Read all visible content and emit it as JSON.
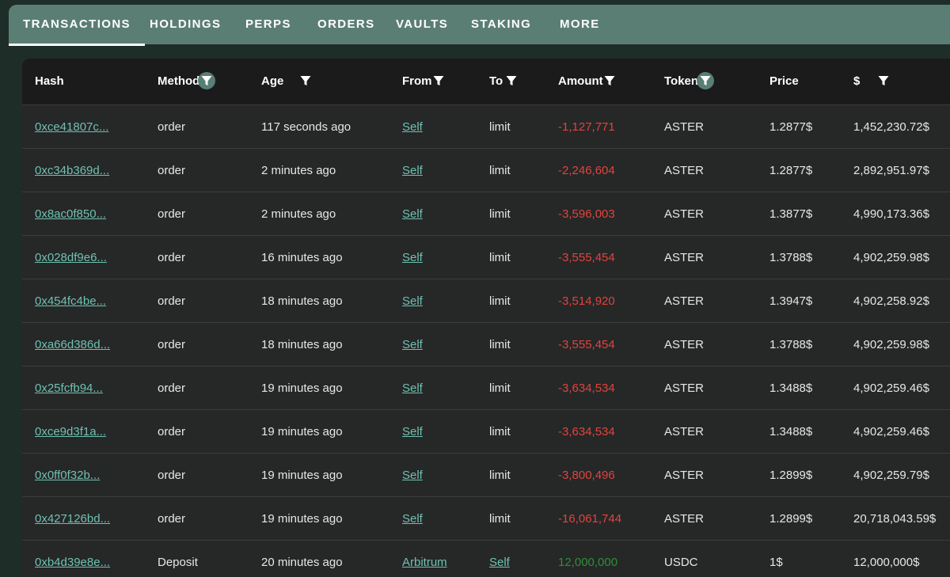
{
  "tabs": [
    "TRANSACTIONS",
    "HOLDINGS",
    "PERPS",
    "ORDERS",
    "VAULTS",
    "STAKING",
    "MORE"
  ],
  "active_tab": "TRANSACTIONS",
  "columns": [
    "Hash",
    "Method",
    "Age",
    "From",
    "To",
    "Amount",
    "Token",
    "Price",
    "$"
  ],
  "filter_icon": "filter-funnel-icon",
  "colors": {
    "link": "#6fc1b2",
    "negative": "#e0443e",
    "positive": "#2f8f3a",
    "tabbar": "#5b7e74",
    "filter_active": "#587e76"
  },
  "rows": [
    {
      "hash": "0xce41807c...",
      "method": "order",
      "age": "117 seconds ago",
      "from": "Self",
      "to": "limit",
      "amount": "-1,127,771",
      "token": "ASTER",
      "price": "1.2877$",
      "usd": "1,452,230.72$"
    },
    {
      "hash": "0xc34b369d...",
      "method": "order",
      "age": "2 minutes ago",
      "from": "Self",
      "to": "limit",
      "amount": "-2,246,604",
      "token": "ASTER",
      "price": "1.2877$",
      "usd": "2,892,951.97$"
    },
    {
      "hash": "0x8ac0f850...",
      "method": "order",
      "age": "2 minutes ago",
      "from": "Self",
      "to": "limit",
      "amount": "-3,596,003",
      "token": "ASTER",
      "price": "1.3877$",
      "usd": "4,990,173.36$"
    },
    {
      "hash": "0x028df9e6...",
      "method": "order",
      "age": "16 minutes ago",
      "from": "Self",
      "to": "limit",
      "amount": "-3,555,454",
      "token": "ASTER",
      "price": "1.3788$",
      "usd": "4,902,259.98$"
    },
    {
      "hash": "0x454fc4be...",
      "method": "order",
      "age": "18 minutes ago",
      "from": "Self",
      "to": "limit",
      "amount": "-3,514,920",
      "token": "ASTER",
      "price": "1.3947$",
      "usd": "4,902,258.92$"
    },
    {
      "hash": "0xa66d386d...",
      "method": "order",
      "age": "18 minutes ago",
      "from": "Self",
      "to": "limit",
      "amount": "-3,555,454",
      "token": "ASTER",
      "price": "1.3788$",
      "usd": "4,902,259.98$"
    },
    {
      "hash": "0x25fcfb94...",
      "method": "order",
      "age": "19 minutes ago",
      "from": "Self",
      "to": "limit",
      "amount": "-3,634,534",
      "token": "ASTER",
      "price": "1.3488$",
      "usd": "4,902,259.46$"
    },
    {
      "hash": "0xce9d3f1a...",
      "method": "order",
      "age": "19 minutes ago",
      "from": "Self",
      "to": "limit",
      "amount": "-3,634,534",
      "token": "ASTER",
      "price": "1.3488$",
      "usd": "4,902,259.46$"
    },
    {
      "hash": "0x0ff0f32b...",
      "method": "order",
      "age": "19 minutes ago",
      "from": "Self",
      "to": "limit",
      "amount": "-3,800,496",
      "token": "ASTER",
      "price": "1.2899$",
      "usd": "4,902,259.79$"
    },
    {
      "hash": "0x427126bd...",
      "method": "order",
      "age": "19 minutes ago",
      "from": "Self",
      "to": "limit",
      "amount": "-16,061,744",
      "token": "ASTER",
      "price": "1.2899$",
      "usd": "20,718,043.59$"
    },
    {
      "hash": "0xb4d39e8e...",
      "method": "Deposit",
      "age": "20 minutes ago",
      "from": "Arbitrum",
      "to": "Self",
      "amount": "12,000,000",
      "token": "USDC",
      "price": "1$",
      "usd": "12,000,000$"
    }
  ]
}
